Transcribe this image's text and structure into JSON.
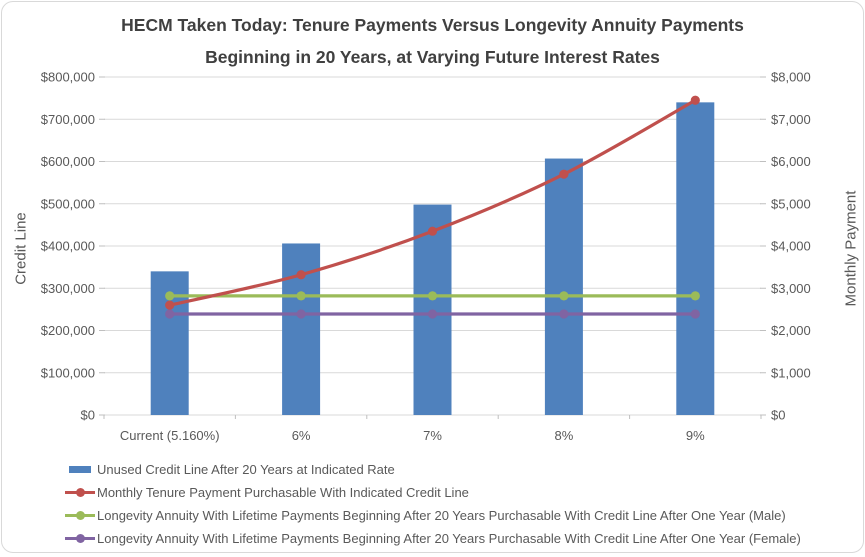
{
  "chart_data": {
    "type": "bar",
    "subtype": "combo-bar-line-dual-axis",
    "title": "HECM Taken Today: Tenure Payments Versus Longevity Annuity Payments Beginning in 20 Years, at Varying Future Interest Rates",
    "title_line1": "HECM Taken Today: Tenure Payments Versus Longevity Annuity Payments",
    "title_line2": "Beginning in 20 Years, at Varying Future Interest Rates",
    "categories": [
      "Current (5.160%)",
      "6%",
      "7%",
      "8%",
      "9%"
    ],
    "xlabel": "",
    "ylabel_left": "Credit Line",
    "ylabel_right": "Monthly Payment",
    "ylim_left": [
      0,
      800000
    ],
    "ylim_right": [
      0,
      8000
    ],
    "ytick_labels_left": [
      "$0",
      "$100,000",
      "$200,000",
      "$300,000",
      "$400,000",
      "$500,000",
      "$600,000",
      "$700,000",
      "$800,000"
    ],
    "ytick_labels_right": [
      "$0",
      "$1,000",
      "$2,000",
      "$3,000",
      "$4,000",
      "$5,000",
      "$6,000",
      "$7,000",
      "$8,000"
    ],
    "grid": true,
    "legend_position": "bottom-left",
    "series": [
      {
        "name": "Unused Credit Line After 20 Years at Indicated Rate",
        "style": "bar",
        "axis": "left",
        "color": "#4F81BD",
        "values": [
          340000,
          406000,
          498000,
          607000,
          740000
        ]
      },
      {
        "name": "Monthly Tenure Payment Purchasable With Indicated Credit Line",
        "style": "line",
        "axis": "right",
        "color": "#C0504D",
        "smooth": true,
        "values": [
          2600,
          3320,
          4350,
          5700,
          7450
        ]
      },
      {
        "name": "Longevity Annuity With Lifetime Payments Beginning After 20 Years Purchasable With Credit Line After One Year (Male)",
        "style": "line",
        "axis": "right",
        "color": "#9BBB59",
        "smooth": false,
        "values": [
          2820,
          2820,
          2820,
          2820,
          2820
        ]
      },
      {
        "name": "Longevity Annuity With Lifetime Payments Beginning After 20 Years Purchasable With Credit Line After One Year (Female)",
        "style": "line",
        "axis": "right",
        "color": "#8064A2",
        "smooth": false,
        "values": [
          2390,
          2390,
          2390,
          2390,
          2390
        ]
      }
    ],
    "colors": {
      "gridline": "#D9D9D9",
      "tick": "#BFBFBF",
      "axis_text": "#595959",
      "title_text": "#404040",
      "figure_border": "#D9D9D9",
      "background": "#FFFFFF"
    }
  }
}
